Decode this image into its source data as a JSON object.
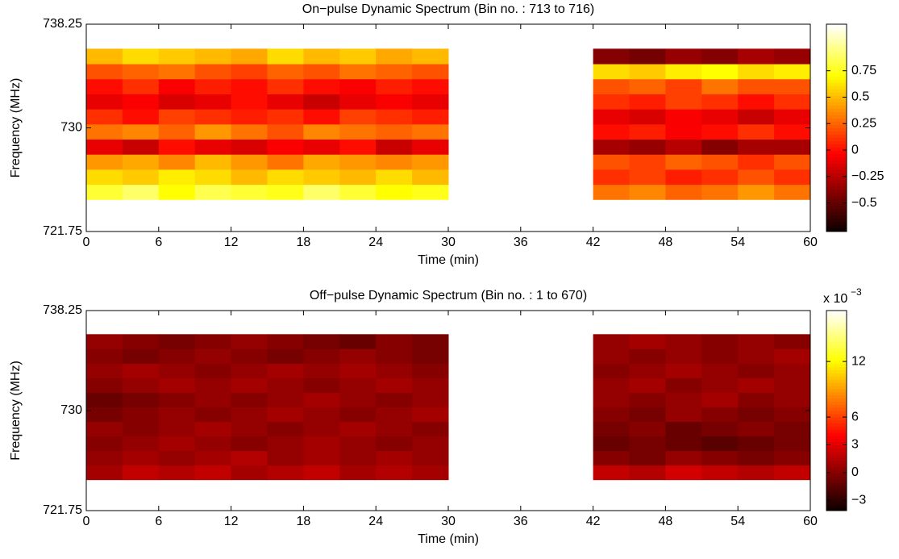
{
  "chart_data": [
    {
      "type": "heatmap",
      "title": "On−pulse Dynamic Spectrum (Bin no. : 713 to 716)",
      "xlabel": "Time (min)",
      "ylabel": "Frequency (MHz)",
      "colormap": "hot",
      "x_edges": [
        0,
        3,
        6,
        9,
        12,
        15,
        18,
        21,
        24,
        27,
        30,
        33,
        36,
        39,
        42,
        45,
        48,
        51,
        54,
        57,
        60
      ],
      "y_edges": [
        724.3,
        725.5,
        726.7,
        727.9,
        729.1,
        730.3,
        731.5,
        732.7,
        733.9,
        735.1,
        736.3
      ],
      "values": [
        [
          0.8,
          0.9,
          0.7,
          0.85,
          0.8,
          0.75,
          0.9,
          0.8,
          0.7,
          0.75,
          null,
          null,
          null,
          null,
          0.3,
          0.35,
          0.25,
          0.3,
          0.4,
          0.3
        ],
        [
          0.6,
          0.55,
          0.65,
          0.6,
          0.5,
          0.6,
          0.55,
          0.5,
          0.6,
          0.5,
          null,
          null,
          null,
          null,
          0.1,
          0.15,
          0.05,
          0.1,
          0.2,
          0.1
        ],
        [
          0.4,
          0.45,
          0.35,
          0.5,
          0.4,
          0.3,
          0.45,
          0.4,
          0.35,
          0.4,
          null,
          null,
          null,
          null,
          0.2,
          0.15,
          0.25,
          0.2,
          0.1,
          0.2
        ],
        [
          -0.1,
          -0.2,
          0.0,
          -0.1,
          -0.15,
          -0.05,
          -0.1,
          0.0,
          -0.2,
          -0.1,
          null,
          null,
          null,
          null,
          -0.3,
          -0.35,
          -0.25,
          -0.4,
          -0.3,
          -0.3
        ],
        [
          0.3,
          0.35,
          0.25,
          0.4,
          0.3,
          0.2,
          0.35,
          0.3,
          0.25,
          0.3,
          null,
          null,
          null,
          null,
          0.0,
          0.05,
          -0.05,
          0.0,
          0.1,
          0.0
        ],
        [
          0.1,
          0.0,
          0.15,
          0.1,
          0.05,
          0.1,
          0.0,
          0.15,
          0.1,
          0.05,
          null,
          null,
          null,
          null,
          -0.1,
          -0.15,
          -0.05,
          -0.1,
          -0.2,
          -0.1
        ],
        [
          -0.1,
          -0.05,
          -0.15,
          -0.1,
          0.0,
          -0.1,
          -0.2,
          -0.1,
          -0.05,
          -0.1,
          null,
          null,
          null,
          null,
          0.1,
          0.05,
          0.15,
          0.1,
          0.0,
          0.1
        ],
        [
          0.0,
          0.1,
          -0.05,
          0.05,
          0.0,
          0.1,
          0.0,
          -0.05,
          0.05,
          0.0,
          null,
          null,
          null,
          null,
          0.2,
          0.25,
          0.15,
          0.3,
          0.2,
          0.2
        ],
        [
          0.2,
          0.25,
          0.3,
          0.2,
          0.15,
          0.25,
          0.2,
          0.3,
          0.25,
          0.2,
          null,
          null,
          null,
          null,
          0.6,
          0.55,
          0.65,
          0.7,
          0.6,
          0.65
        ],
        [
          0.5,
          0.6,
          0.55,
          0.5,
          0.45,
          0.6,
          0.5,
          0.55,
          0.45,
          0.5,
          null,
          null,
          null,
          null,
          -0.4,
          -0.45,
          -0.35,
          -0.4,
          -0.3,
          -0.35
        ]
      ],
      "xlim": [
        0,
        60
      ],
      "xticks": [
        0,
        6,
        12,
        18,
        24,
        30,
        36,
        42,
        48,
        54,
        60
      ],
      "ylim": [
        721.75,
        738.25
      ],
      "yticks": [
        721.75,
        730,
        738.25
      ],
      "clim": [
        -0.77,
        1.19
      ],
      "cticks": [
        {
          "value": -0.5,
          "label": "−0.5"
        },
        {
          "value": -0.25,
          "label": "−0.25"
        },
        0,
        0.25,
        0.5,
        0.75
      ]
    },
    {
      "type": "heatmap",
      "title": "Off−pulse Dynamic Spectrum (Bin no. : 1 to 670)",
      "xlabel": "Time (min)",
      "ylabel": "Frequency (MHz)",
      "colormap": "hot",
      "x_edges": [
        0,
        3,
        6,
        9,
        12,
        15,
        18,
        21,
        24,
        27,
        30,
        33,
        36,
        39,
        42,
        45,
        48,
        51,
        54,
        57,
        60
      ],
      "y_edges": [
        724.3,
        725.5,
        726.7,
        727.9,
        729.1,
        730.3,
        731.5,
        732.7,
        733.9,
        735.1,
        736.3
      ],
      "values": [
        [
          1,
          2,
          1.5,
          2,
          1,
          1.5,
          2,
          1,
          1.5,
          1,
          null,
          null,
          null,
          null,
          2,
          1.5,
          2.5,
          2,
          1.5,
          2
        ],
        [
          0.5,
          1,
          0.5,
          1,
          1.5,
          0.5,
          1,
          0.5,
          1,
          0.5,
          null,
          null,
          null,
          null,
          0,
          -0.5,
          0.5,
          0,
          -0.5,
          0
        ],
        [
          0,
          0.5,
          1,
          0.5,
          0,
          0.5,
          1,
          0.5,
          0,
          0.5,
          null,
          null,
          null,
          null,
          -1,
          -0.5,
          -1,
          -1.5,
          -1,
          -0.5
        ],
        [
          0.5,
          0,
          0.5,
          1,
          0.5,
          0,
          0.5,
          1,
          0.5,
          0,
          null,
          null,
          null,
          null,
          -0.5,
          0,
          -1,
          -0.5,
          0,
          -0.5
        ],
        [
          -0.5,
          0,
          0.5,
          0,
          0.5,
          1,
          0.5,
          0,
          0.5,
          1,
          null,
          null,
          null,
          null,
          0,
          -0.5,
          0.5,
          0,
          -0.5,
          0
        ],
        [
          -1,
          -0.5,
          0,
          0.5,
          0,
          0.5,
          1,
          0.5,
          0,
          0.5,
          null,
          null,
          null,
          null,
          0.5,
          0,
          0.5,
          1,
          0,
          0.5
        ],
        [
          0,
          0.5,
          1,
          0.5,
          1,
          0.5,
          0,
          0.5,
          1,
          0.5,
          null,
          null,
          null,
          null,
          0.5,
          1,
          0,
          0.5,
          1,
          0.5
        ],
        [
          0.5,
          1,
          0.5,
          0,
          0.5,
          1,
          0.5,
          1,
          0.5,
          0,
          null,
          null,
          null,
          null,
          0,
          0.5,
          1,
          0.5,
          0,
          0.5
        ],
        [
          0,
          -0.5,
          0,
          0.5,
          0,
          -0.5,
          0,
          0.5,
          0,
          -0.5,
          null,
          null,
          null,
          null,
          0.5,
          0,
          0.5,
          0,
          0.5,
          1
        ],
        [
          0.5,
          0,
          -0.5,
          0,
          0.5,
          0,
          -0.5,
          -1,
          0,
          -0.5,
          null,
          null,
          null,
          null,
          0.5,
          1,
          0.5,
          0,
          0.5,
          0
        ]
      ],
      "xlim": [
        0,
        60
      ],
      "xticks": [
        0,
        6,
        12,
        18,
        24,
        30,
        36,
        42,
        48,
        54,
        60
      ],
      "ylim": [
        721.75,
        738.25
      ],
      "yticks": [
        721.75,
        730,
        738.25
      ],
      "clim": [
        -4.1,
        17.5
      ],
      "cticks": [
        {
          "value": -3,
          "label": "−3"
        },
        0,
        3,
        6,
        12
      ],
      "colorbar_scale": "x 10",
      "colorbar_exponent": "−3"
    }
  ]
}
